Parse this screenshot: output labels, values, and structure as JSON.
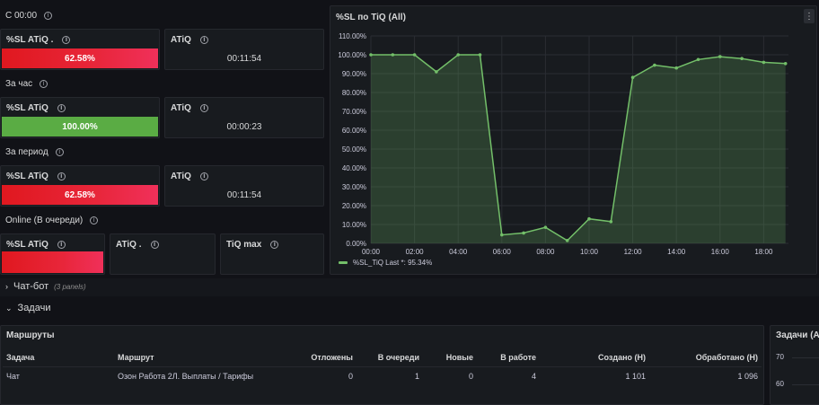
{
  "rows": {
    "c0000": "С 00:00",
    "za_chas": "За час",
    "za_period": "За период",
    "online": "Online (В очереди)"
  },
  "stat_row1": {
    "sl_title": "%SL ATiQ .",
    "sl_value": "62.58%",
    "sl_fraction": 0.6258,
    "atiq_title": "ATiQ",
    "atiq_value": "00:11:54"
  },
  "stat_row2": {
    "sl_title": "%SL ATiQ",
    "sl_value": "100.00%",
    "sl_fraction": 1.0,
    "atiq_title": "ATiQ",
    "atiq_value": "00:00:23"
  },
  "stat_row3": {
    "sl_title": "%SL ATiQ",
    "sl_value": "62.58%",
    "sl_fraction": 0.6258,
    "atiq_title": "ATiQ",
    "atiq_value": "00:11:54"
  },
  "stat_row4": {
    "sl_title": "%SL ATiQ",
    "atiq_title": "ATiQ .",
    "tiq_max_title": "TiQ max"
  },
  "chart_panel": {
    "title": "%SL по TiQ (All)",
    "menu_icon": "kebab-menu-icon",
    "legend_text": "%SL_TiQ  Last *: 95.34%"
  },
  "chart_data": {
    "type": "area",
    "title": "%SL по TiQ (All)",
    "x": [
      "00:00",
      "01:00",
      "02:00",
      "03:00",
      "04:00",
      "05:00",
      "06:00",
      "07:00",
      "08:00",
      "09:00",
      "10:00",
      "11:00",
      "12:00",
      "13:00",
      "14:00",
      "15:00",
      "16:00",
      "17:00",
      "18:00",
      "19:00"
    ],
    "series": [
      {
        "name": "%SL_TiQ",
        "color": "#73bf69",
        "values": [
          100,
          100,
          100,
          91,
          100,
          100,
          4.5,
          5.5,
          8.5,
          1.5,
          13,
          11.5,
          88,
          94.5,
          93,
          97.5,
          99,
          98,
          96,
          95.34
        ]
      }
    ],
    "y_ticks": [
      "0.00%",
      "10.00%",
      "20.00%",
      "30.00%",
      "40.00%",
      "50.00%",
      "60.00%",
      "70.00%",
      "80.00%",
      "90.00%",
      "100.00%",
      "110.00%"
    ],
    "x_ticks": [
      "00:00",
      "02:00",
      "04:00",
      "06:00",
      "08:00",
      "10:00",
      "12:00",
      "14:00",
      "16:00",
      "18:00"
    ],
    "ylim": [
      0,
      110
    ],
    "grid": true,
    "legend": "bottom-left"
  },
  "sections": {
    "chatbot": {
      "title": "Чат-бот",
      "sub": "(3 panels)"
    },
    "zadachi": {
      "title": "Задачи"
    }
  },
  "routes_table": {
    "title": "Маршруты",
    "columns": [
      "Задача",
      "Маршрут",
      "Отложены",
      "В очереди",
      "Новые",
      "В работе",
      "Создано (Н)",
      "Обработано (Н)"
    ],
    "rows": [
      {
        "task": "Чат",
        "route": "Озон Работа 2Л. Выплаты / Тарифы",
        "deferred": "0",
        "queued": "1",
        "new": "0",
        "in_work": "4",
        "created": "1 101",
        "processed": "1 096"
      }
    ]
  },
  "right_panel": {
    "title": "Задачи (All",
    "ticks": [
      "70",
      "60"
    ]
  },
  "colors": {
    "red": "#e0181f",
    "green": "#5aac44",
    "series": "#73bf69",
    "background": "#111217",
    "panel": "#181b1f"
  }
}
